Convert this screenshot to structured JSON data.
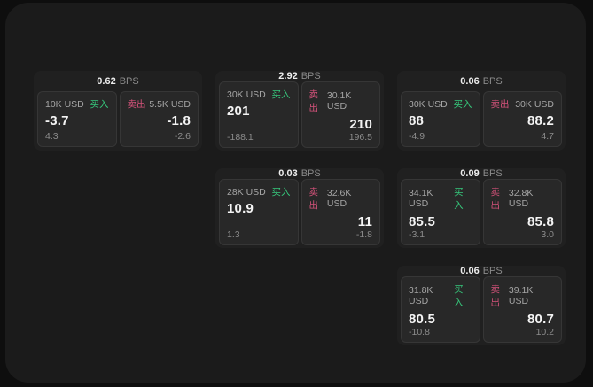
{
  "labels": {
    "bps_unit": "BPS",
    "buy": "买入",
    "sell": "卖出"
  },
  "colors": {
    "buy": "#36c97c",
    "sell": "#d4527a",
    "surface": "#1b1b1b",
    "card": "#202020",
    "panel": "#282828"
  },
  "cards": [
    {
      "col": 1,
      "row": 1,
      "bps": "0.62",
      "buy": {
        "size": "10K USD",
        "price": "-3.7",
        "delta": "4.3"
      },
      "sell": {
        "size": "5.5K USD",
        "price": "-1.8",
        "delta": "-2.6"
      }
    },
    {
      "col": 2,
      "row": 1,
      "bps": "2.92",
      "buy": {
        "size": "30K USD",
        "price": "201",
        "delta": "-188.1"
      },
      "sell": {
        "size": "30.1K USD",
        "price": "210",
        "delta": "196.5"
      }
    },
    {
      "col": 3,
      "row": 1,
      "bps": "0.06",
      "buy": {
        "size": "30K USD",
        "price": "88",
        "delta": "-4.9"
      },
      "sell": {
        "size": "30K USD",
        "price": "88.2",
        "delta": "4.7"
      }
    },
    {
      "col": 2,
      "row": 2,
      "bps": "0.03",
      "buy": {
        "size": "28K USD",
        "price": "10.9",
        "delta": "1.3"
      },
      "sell": {
        "size": "32.6K USD",
        "price": "11",
        "delta": "-1.8"
      }
    },
    {
      "col": 3,
      "row": 2,
      "bps": "0.09",
      "buy": {
        "size": "34.1K USD",
        "price": "85.5",
        "delta": "-3.1"
      },
      "sell": {
        "size": "32.8K USD",
        "price": "85.8",
        "delta": "3.0"
      }
    },
    {
      "col": 3,
      "row": 3,
      "bps": "0.06",
      "buy": {
        "size": "31.8K USD",
        "price": "80.5",
        "delta": "-10.8"
      },
      "sell": {
        "size": "39.1K USD",
        "price": "80.7",
        "delta": "10.2"
      }
    }
  ]
}
